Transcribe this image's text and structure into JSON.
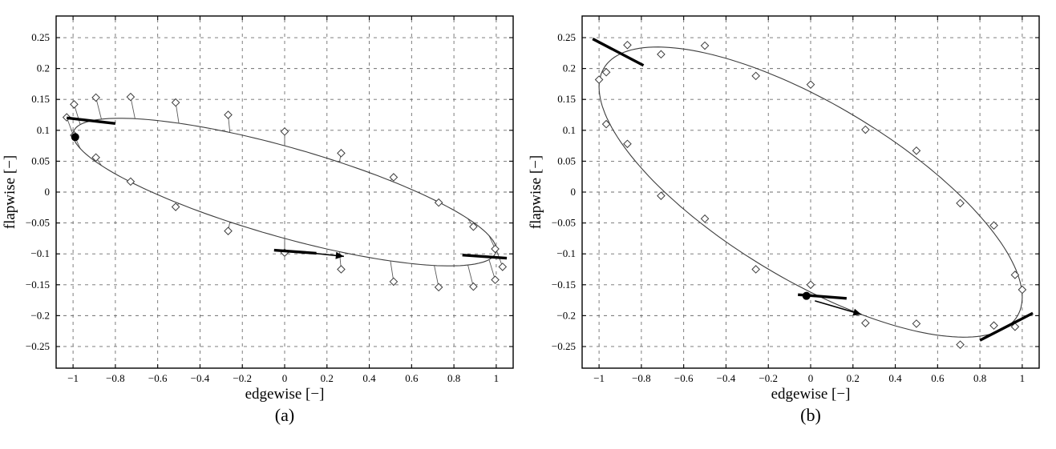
{
  "figure": {
    "background": "#ffffff",
    "curve_color": "#3d3d3d",
    "marker": "open-diamond",
    "annotation_color": "#000000"
  },
  "chart_data": [
    {
      "type": "scatter",
      "caption": "(a)",
      "title": "",
      "xlabel": "edgewise [−]",
      "ylabel": "flapwise [−]",
      "xlim": [
        -1.08,
        1.08
      ],
      "ylim": [
        -0.285,
        0.285
      ],
      "grid": true,
      "legend": null,
      "xticks": [
        -1,
        -0.8,
        -0.6,
        -0.4,
        -0.2,
        0,
        0.2,
        0.4,
        0.6,
        0.8,
        1
      ],
      "xtick_labels": [
        "−1",
        "−0.8",
        "−0.6",
        "−0.4",
        "−0.2",
        "0",
        "0.2",
        "0.4",
        "0.6",
        "0.8",
        "1"
      ],
      "yticks": [
        -0.25,
        -0.2,
        -0.15,
        -0.1,
        -0.05,
        0,
        0.05,
        0.1,
        0.15,
        0.2,
        0.25
      ],
      "ytick_labels": [
        "−0.25",
        "−0.2",
        "−0.15",
        "−0.1",
        "−0.05",
        "0",
        "0.05",
        "0.1",
        "0.15",
        "0.2",
        "0.25"
      ],
      "ellipse": {
        "x_cos": 1.0,
        "x_sin": 0.0,
        "y_cos": -0.093,
        "y_sin": 0.075
      },
      "stems": true,
      "diamonds": [
        [
          0,
          1.03,
          -0.121
        ],
        [
          15,
          0.995,
          -0.092
        ],
        [
          30,
          0.892,
          -0.056
        ],
        [
          45,
          0.728,
          -0.017
        ],
        [
          60,
          0.515,
          0.024
        ],
        [
          75,
          0.267,
          0.063
        ],
        [
          90,
          0.0,
          0.098
        ],
        [
          105,
          -0.267,
          0.125
        ],
        [
          120,
          -0.515,
          0.145
        ],
        [
          135,
          -0.728,
          0.154
        ],
        [
          150,
          -0.892,
          0.153
        ],
        [
          165,
          -0.995,
          0.142
        ],
        [
          180,
          -1.03,
          0.121
        ],
        [
          195,
          -0.995,
          0.092
        ],
        [
          210,
          -0.892,
          0.056
        ],
        [
          225,
          -0.728,
          0.017
        ],
        [
          240,
          -0.515,
          -0.024
        ],
        [
          255,
          -0.267,
          -0.063
        ],
        [
          270,
          0.0,
          -0.098
        ],
        [
          285,
          0.267,
          -0.125
        ],
        [
          300,
          0.515,
          -0.145
        ],
        [
          315,
          0.728,
          -0.154
        ],
        [
          330,
          0.892,
          -0.153
        ],
        [
          345,
          0.995,
          -0.142
        ]
      ],
      "start_dot": [
        -0.99,
        0.089
      ],
      "segments": [
        [
          [
            -1.03,
            0.12
          ],
          [
            -0.8,
            0.111
          ]
        ],
        [
          [
            -0.05,
            -0.094
          ],
          [
            0.15,
            -0.099
          ]
        ],
        [
          [
            0.84,
            -0.102
          ],
          [
            1.05,
            -0.107
          ]
        ]
      ],
      "arrow": {
        "from": [
          0.08,
          -0.097
        ],
        "to": [
          0.28,
          -0.104
        ]
      }
    },
    {
      "type": "scatter",
      "caption": "(b)",
      "title": "",
      "xlabel": "edgewise [−]",
      "ylabel": "flapwise [−]",
      "xlim": [
        -1.08,
        1.08
      ],
      "ylim": [
        -0.285,
        0.285
      ],
      "grid": true,
      "legend": null,
      "xticks": [
        -1,
        -0.8,
        -0.6,
        -0.4,
        -0.2,
        0,
        0.2,
        0.4,
        0.6,
        0.8,
        1
      ],
      "xtick_labels": [
        "−1",
        "−0.8",
        "−0.6",
        "−0.4",
        "−0.2",
        "0",
        "0.2",
        "0.4",
        "0.6",
        "0.8",
        "1"
      ],
      "yticks": [
        -0.25,
        -0.2,
        -0.15,
        -0.1,
        -0.05,
        0,
        0.05,
        0.1,
        0.15,
        0.2,
        0.25
      ],
      "ytick_labels": [
        "−0.25",
        "−0.2",
        "−0.15",
        "−0.1",
        "−0.05",
        "0",
        "0.05",
        "0.1",
        "0.15",
        "0.2",
        "0.25"
      ],
      "ellipse": {
        "x_cos": 1.0,
        "x_sin": 0.0,
        "y_cos": -0.17,
        "y_sin": 0.162
      },
      "stems": false,
      "diamonds": [
        [
          0,
          1.0,
          -0.158
        ],
        [
          15,
          0.966,
          -0.134
        ],
        [
          30,
          0.866,
          -0.054
        ],
        [
          45,
          0.707,
          -0.018
        ],
        [
          60,
          0.5,
          0.067
        ],
        [
          75,
          0.259,
          0.101
        ],
        [
          90,
          0.0,
          0.174
        ],
        [
          105,
          -0.259,
          0.188
        ],
        [
          120,
          -0.5,
          0.237
        ],
        [
          135,
          -0.707,
          0.223
        ],
        [
          150,
          -0.866,
          0.238
        ],
        [
          165,
          -0.966,
          0.194
        ],
        [
          180,
          -1.0,
          0.182
        ],
        [
          195,
          -0.966,
          0.11
        ],
        [
          210,
          -0.866,
          0.078
        ],
        [
          225,
          -0.707,
          -0.006
        ],
        [
          240,
          -0.5,
          -0.043
        ],
        [
          255,
          -0.259,
          -0.125
        ],
        [
          270,
          0.0,
          -0.15
        ],
        [
          285,
          0.259,
          -0.212
        ],
        [
          300,
          0.5,
          -0.213
        ],
        [
          315,
          0.707,
          -0.247
        ],
        [
          330,
          0.866,
          -0.216
        ],
        [
          345,
          0.966,
          -0.218
        ]
      ],
      "start_dot": [
        -0.02,
        -0.168
      ],
      "segments": [
        [
          [
            -1.03,
            0.248
          ],
          [
            -0.79,
            0.205
          ]
        ],
        [
          [
            -0.06,
            -0.166
          ],
          [
            0.17,
            -0.172
          ]
        ],
        [
          [
            0.8,
            -0.24
          ],
          [
            1.05,
            -0.196
          ]
        ]
      ],
      "arrow": {
        "from": [
          0.02,
          -0.176
        ],
        "to": [
          0.24,
          -0.198
        ]
      }
    }
  ]
}
